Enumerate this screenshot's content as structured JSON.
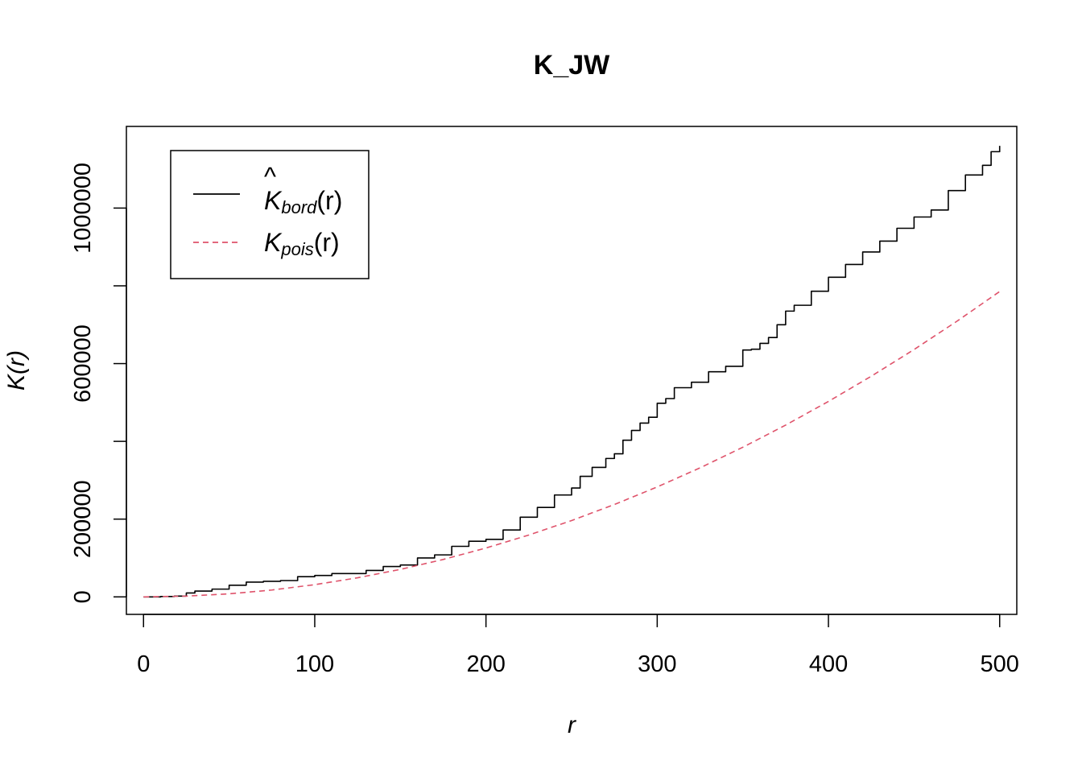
{
  "chart_data": {
    "type": "line",
    "title": "K_JW",
    "xlabel": "r",
    "ylabel": "K(r)",
    "xlim": [
      -10,
      510
    ],
    "ylim": [
      -45000,
      1210000
    ],
    "xticks": [
      0,
      100,
      200,
      300,
      400,
      500
    ],
    "yticks": [
      0,
      200000,
      400000,
      600000,
      800000,
      1000000
    ],
    "ytick_labels": [
      "0",
      "200000",
      "",
      "600000",
      "",
      "1000000"
    ],
    "legend_position": "top-left",
    "series": [
      {
        "name_main": "K",
        "name_hat": "^",
        "name_sub": "bord",
        "name_arg": "(r)",
        "color": "#000000",
        "dash": "solid",
        "x": [
          0,
          10,
          18,
          25,
          30,
          40,
          50,
          60,
          70,
          80,
          90,
          100,
          110,
          120,
          130,
          140,
          150,
          160,
          170,
          180,
          190,
          200,
          210,
          220,
          230,
          240,
          250,
          255,
          262,
          270,
          275,
          280,
          285,
          290,
          295,
          300,
          305,
          310,
          320,
          330,
          340,
          350,
          355,
          360,
          365,
          370,
          375,
          380,
          390,
          400,
          410,
          420,
          430,
          440,
          450,
          460,
          470,
          480,
          490,
          495,
          500
        ],
        "y": [
          0,
          1000,
          2000,
          10000,
          15000,
          20000,
          30000,
          38000,
          40000,
          42000,
          52000,
          55000,
          60000,
          60000,
          68000,
          78000,
          82000,
          100000,
          108000,
          130000,
          143000,
          148000,
          172000,
          205000,
          230000,
          262000,
          280000,
          310000,
          333000,
          356000,
          368000,
          403000,
          428000,
          447000,
          462000,
          498000,
          510000,
          538000,
          552000,
          579000,
          593000,
          635000,
          637000,
          652000,
          667000,
          700000,
          735000,
          750000,
          786000,
          822000,
          855000,
          887000,
          915000,
          948000,
          977000,
          995000,
          1045000,
          1085000,
          1110000,
          1145000,
          1160000
        ]
      },
      {
        "name_main": "K",
        "name_sub": "pois",
        "name_arg": "(r)",
        "color": "#DF536B",
        "dash": "dashed",
        "x": [
          0,
          25,
          50,
          75,
          100,
          125,
          150,
          175,
          200,
          225,
          250,
          275,
          300,
          325,
          350,
          375,
          400,
          425,
          450,
          475,
          500
        ],
        "y": [
          0,
          1963,
          7854,
          17671,
          31416,
          49087,
          70686,
          96211,
          125664,
          159043,
          196350,
          237583,
          282743,
          331831,
          384845,
          441786,
          502655,
          567450,
          636173,
          708822,
          785398
        ]
      }
    ]
  }
}
